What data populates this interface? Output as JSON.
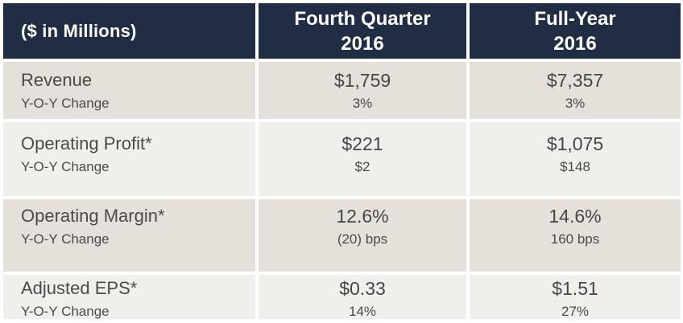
{
  "colors": {
    "header_background": "#212c45",
    "header_text": "#ffffff",
    "row_shade_beige": "#e5e1da",
    "row_shade_light": "#f1efec",
    "body_text": "#4a4a48",
    "page_background": "#ffffff"
  },
  "header": {
    "corner_label": "($ in Millions)",
    "col2_line1": "Fourth Quarter",
    "col2_line2": "2016",
    "col3_line1": "Full-Year",
    "col3_line2": "2016"
  },
  "chart_data": {
    "type": "table",
    "title": "($ in Millions)",
    "columns": [
      "($ in Millions)",
      "Fourth Quarter 2016",
      "Full-Year 2016"
    ],
    "rows": [
      {
        "label": "Revenue",
        "sublabel": "Y-O-Y Change",
        "q4": "$1,759",
        "q4_yoy": "3%",
        "fy": "$7,357",
        "fy_yoy": "3%"
      },
      {
        "label": "Operating Profit*",
        "sublabel": "Y-O-Y Change",
        "q4": "$221",
        "q4_yoy": "$2",
        "fy": "$1,075",
        "fy_yoy": "$148"
      },
      {
        "label": "Operating Margin*",
        "sublabel": "Y-O-Y Change",
        "q4": "12.6%",
        "q4_yoy": "(20) bps",
        "fy": "14.6%",
        "fy_yoy": "160 bps"
      },
      {
        "label": "Adjusted EPS*",
        "sublabel": "Y-O-Y Change",
        "q4": "$0.33",
        "q4_yoy": "14%",
        "fy": "$1.51",
        "fy_yoy": "27%"
      }
    ]
  }
}
